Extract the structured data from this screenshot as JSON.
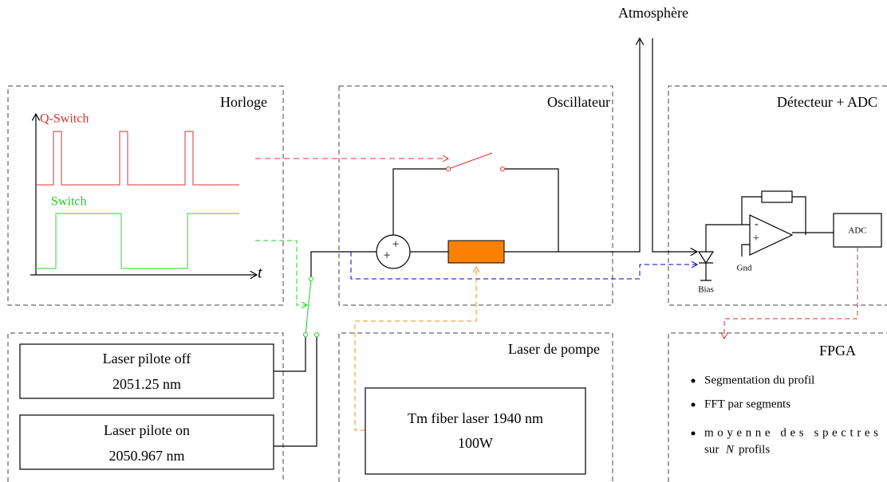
{
  "atmosphere": "Atmosphère",
  "horloge": {
    "title": "Horloge",
    "qswitch": "Q-Switch",
    "switch": "Switch",
    "t": "t"
  },
  "oscillateur": {
    "title": "Oscillateur",
    "summer": [
      "+",
      "+"
    ]
  },
  "detecteur": {
    "title": "Détecteur + ADC",
    "adc": "ADC",
    "gnd": "Gnd",
    "bias": "Bias",
    "minus": "-",
    "plus": "+"
  },
  "lasers": [
    {
      "line1": "Laser pilote off",
      "line2": "2051.25 nm"
    },
    {
      "line1": "Laser pilote on",
      "line2": "2050.967 nm"
    }
  ],
  "pompe": {
    "title": "Laser de pompe",
    "line1": "Tm fiber laser 1940 nm",
    "line2": "100W"
  },
  "fpga": {
    "title": "FPGA",
    "items": [
      "Segmentation du profil",
      "FFT par segments",
      "moyenne des spectres",
      "sur",
      "N",
      "profils"
    ]
  }
}
